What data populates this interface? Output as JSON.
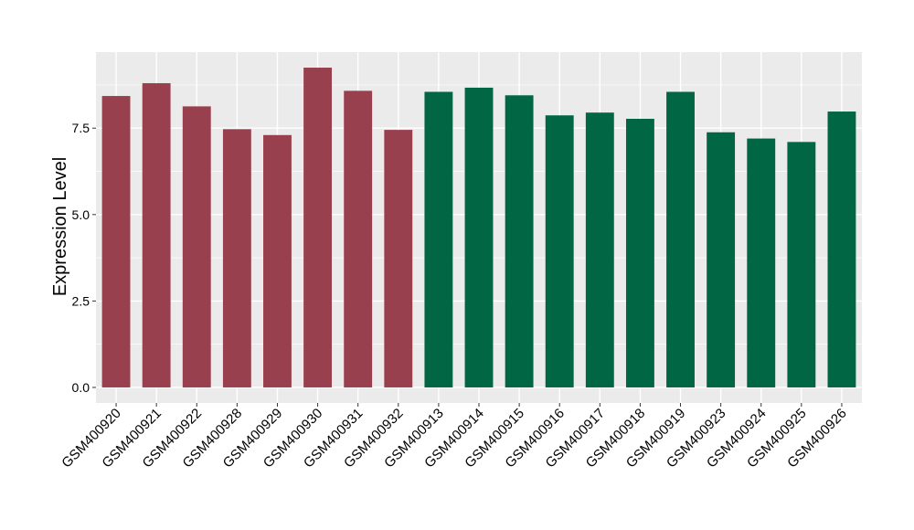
{
  "chart_data": {
    "type": "bar",
    "title": "",
    "xlabel": "",
    "ylabel": "Expression Level",
    "ylim": [
      -0.45,
      9.7
    ],
    "yticks": [
      0.0,
      2.5,
      5.0,
      7.5
    ],
    "ytick_labels": [
      "0.0",
      "2.5",
      "5.0",
      "7.5"
    ],
    "grid": true,
    "legend": "none",
    "panel_background": "#ebebeb",
    "grid_color": "#ffffff",
    "categories": [
      "GSM400920",
      "GSM400921",
      "GSM400922",
      "GSM400928",
      "GSM400929",
      "GSM400930",
      "GSM400931",
      "GSM400932",
      "GSM400913",
      "GSM400914",
      "GSM400915",
      "GSM400916",
      "GSM400917",
      "GSM400918",
      "GSM400919",
      "GSM400923",
      "GSM400924",
      "GSM400925",
      "GSM400926"
    ],
    "values": [
      8.43,
      8.8,
      8.13,
      7.47,
      7.3,
      9.25,
      8.58,
      7.45,
      8.55,
      8.67,
      8.45,
      7.87,
      7.95,
      7.77,
      8.55,
      7.38,
      7.2,
      7.1,
      7.98
    ],
    "colors": [
      "#99404f",
      "#99404f",
      "#99404f",
      "#99404f",
      "#99404f",
      "#99404f",
      "#99404f",
      "#99404f",
      "#006644",
      "#006644",
      "#006644",
      "#006644",
      "#006644",
      "#006644",
      "#006644",
      "#006644",
      "#006644",
      "#006644",
      "#006644"
    ]
  }
}
